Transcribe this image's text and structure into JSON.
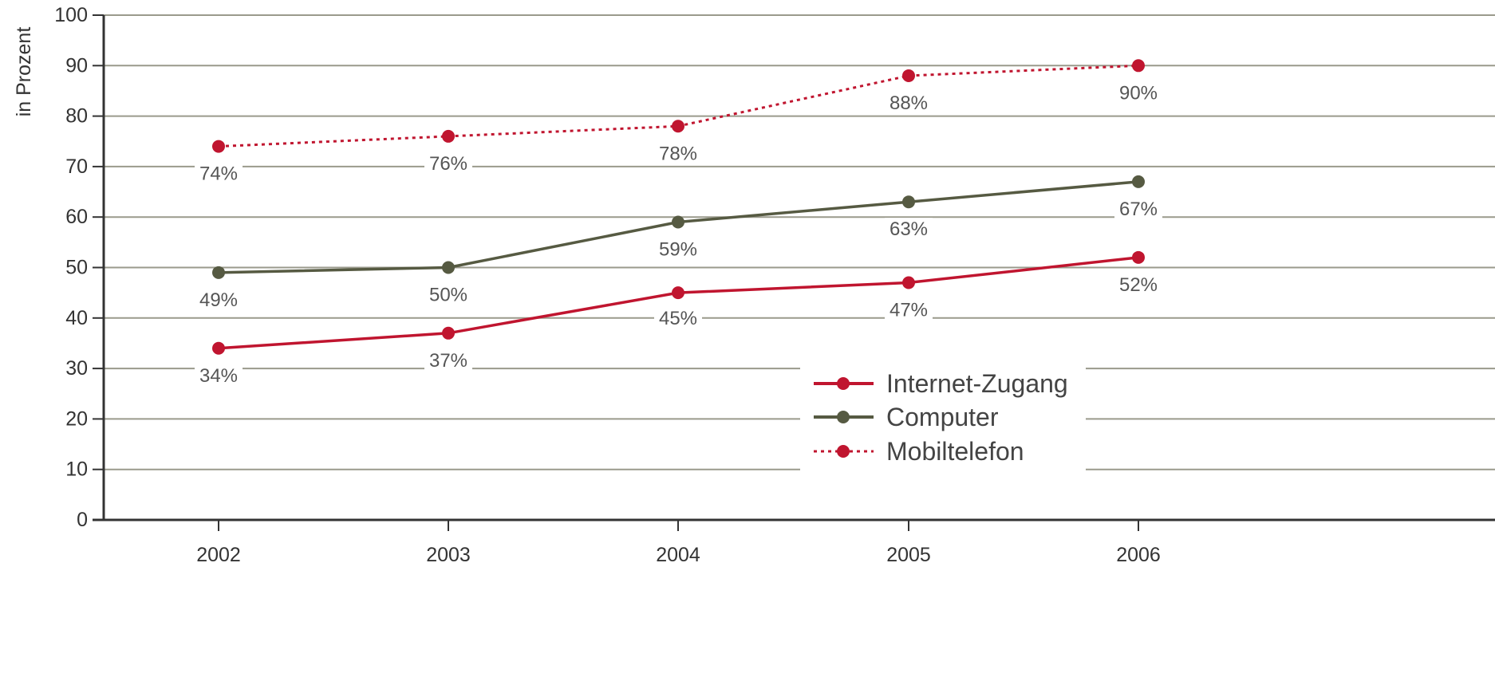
{
  "chart_data": {
    "type": "line",
    "categories": [
      "2002",
      "2003",
      "2004",
      "2005",
      "2006"
    ],
    "ylabel": "in Prozent",
    "xlabel": "",
    "ylim": [
      0,
      100
    ],
    "yticks": [
      0,
      10,
      20,
      30,
      40,
      50,
      60,
      70,
      80,
      90,
      100
    ],
    "grid": "horizontal",
    "legend_position": "lower-right",
    "series": [
      {
        "name": "Internet-Zugang",
        "values": [
          34,
          37,
          45,
          47,
          52
        ],
        "labels": [
          "34%",
          "37%",
          "45%",
          "47%",
          "52%"
        ],
        "color": "#c0152f",
        "style": "solid"
      },
      {
        "name": "Computer",
        "values": [
          49,
          50,
          59,
          63,
          67
        ],
        "labels": [
          "49%",
          "50%",
          "59%",
          "63%",
          "67%"
        ],
        "color": "#565a42",
        "style": "solid"
      },
      {
        "name": "Mobiltelefon",
        "values": [
          74,
          76,
          78,
          88,
          90
        ],
        "labels": [
          "74%",
          "76%",
          "78%",
          "88%",
          "90%"
        ],
        "color": "#c0152f",
        "style": "dotted"
      }
    ]
  }
}
